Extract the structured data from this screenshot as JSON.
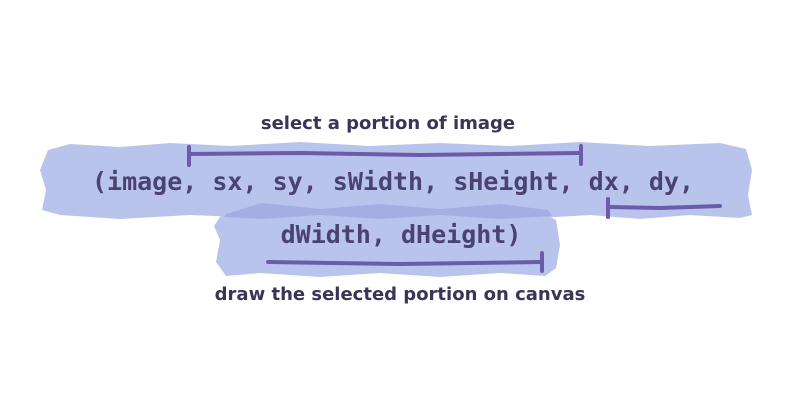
{
  "diagram": {
    "title_top": "select a portion of image",
    "title_bottom": "draw the selected portion on canvas",
    "code_line_1": "(image, sx, sy, sWidth, sHeight, dx, dy,",
    "code_line_2": "dWidth, dHeight)"
  },
  "colors": {
    "highlight_light": "#b9c4ec",
    "highlight_dark": "#9fa9e0",
    "bracket": "#6b5ba8",
    "text": "#3a3456",
    "code_text": "#4a4270"
  }
}
